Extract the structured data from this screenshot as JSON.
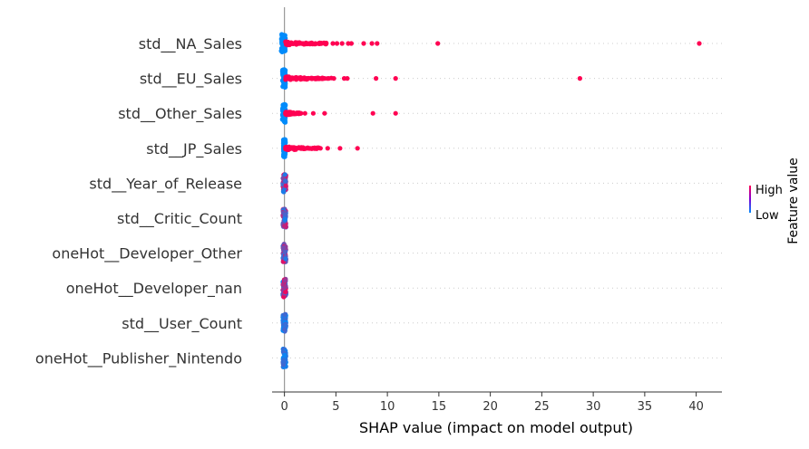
{
  "chart_data": {
    "type": "scatter",
    "subtype": "shap-beeswarm",
    "title": "",
    "xlabel": "SHAP value (impact on model output)",
    "ylabel": "",
    "xlim": [
      -1.2,
      42.5
    ],
    "xticks": [
      0,
      5,
      10,
      15,
      20,
      25,
      30,
      35,
      40
    ],
    "grid": false,
    "zero_line": true,
    "colors": {
      "high": "#ff0052",
      "low": "#008bfb",
      "zero_line": "#999999",
      "row_guide": "#cccccc"
    },
    "colorbar": {
      "title": "Feature value",
      "high_label": "High",
      "low_label": "Low",
      "placement": "right"
    },
    "features": [
      {
        "name": "std__NA_Sales",
        "outliers": [
          0.8,
          1.0,
          1.2,
          1.5,
          1.8,
          2.1,
          2.4,
          2.7,
          3.0,
          3.3,
          3.6,
          3.9,
          4.7,
          5.1,
          5.6,
          6.2,
          6.5,
          7.7,
          8.5,
          9.0,
          14.9,
          40.3
        ],
        "low_range": [
          -0.3,
          0.1
        ],
        "spread_high_to": 4.0
      },
      {
        "name": "std__EU_Sales",
        "outliers": [
          0.7,
          1.0,
          1.3,
          1.6,
          1.9,
          2.2,
          2.6,
          2.9,
          3.2,
          3.6,
          3.9,
          4.3,
          4.8,
          5.8,
          6.1,
          8.9,
          10.8,
          28.7
        ],
        "low_range": [
          -0.2,
          0.1
        ],
        "spread_high_to": 4.5
      },
      {
        "name": "std__Other_Sales",
        "outliers": [
          0.6,
          0.9,
          1.2,
          1.6,
          2.0,
          2.8,
          3.9,
          8.6,
          10.8
        ],
        "low_range": [
          -0.2,
          0.1
        ],
        "spread_high_to": 1.5
      },
      {
        "name": "std__JP_Sales",
        "outliers": [
          0.6,
          0.9,
          1.2,
          1.5,
          1.8,
          2.1,
          2.5,
          2.9,
          3.2,
          3.5,
          4.2,
          5.4,
          7.1
        ],
        "low_range": [
          -0.1,
          0.1
        ],
        "spread_high_to": 3.5
      },
      {
        "name": "std__Year_of_Release",
        "outliers": [],
        "low_range": [
          -0.15,
          0.15
        ],
        "mixed": true
      },
      {
        "name": "std__Critic_Count",
        "outliers": [],
        "low_range": [
          -0.15,
          0.15
        ],
        "mixed": true
      },
      {
        "name": "oneHot__Developer_Other",
        "outliers": [],
        "low_range": [
          -0.15,
          0.15
        ],
        "mixed": true
      },
      {
        "name": "oneHot__Developer_nan",
        "outliers": [],
        "low_range": [
          -0.15,
          0.15
        ],
        "mixed": true
      },
      {
        "name": "std__User_Count",
        "outliers": [],
        "low_range": [
          -0.15,
          0.15
        ],
        "mixed": false
      },
      {
        "name": "oneHot__Publisher_Nintendo",
        "outliers": [],
        "low_range": [
          -0.15,
          0.15
        ],
        "mixed": false
      }
    ]
  }
}
